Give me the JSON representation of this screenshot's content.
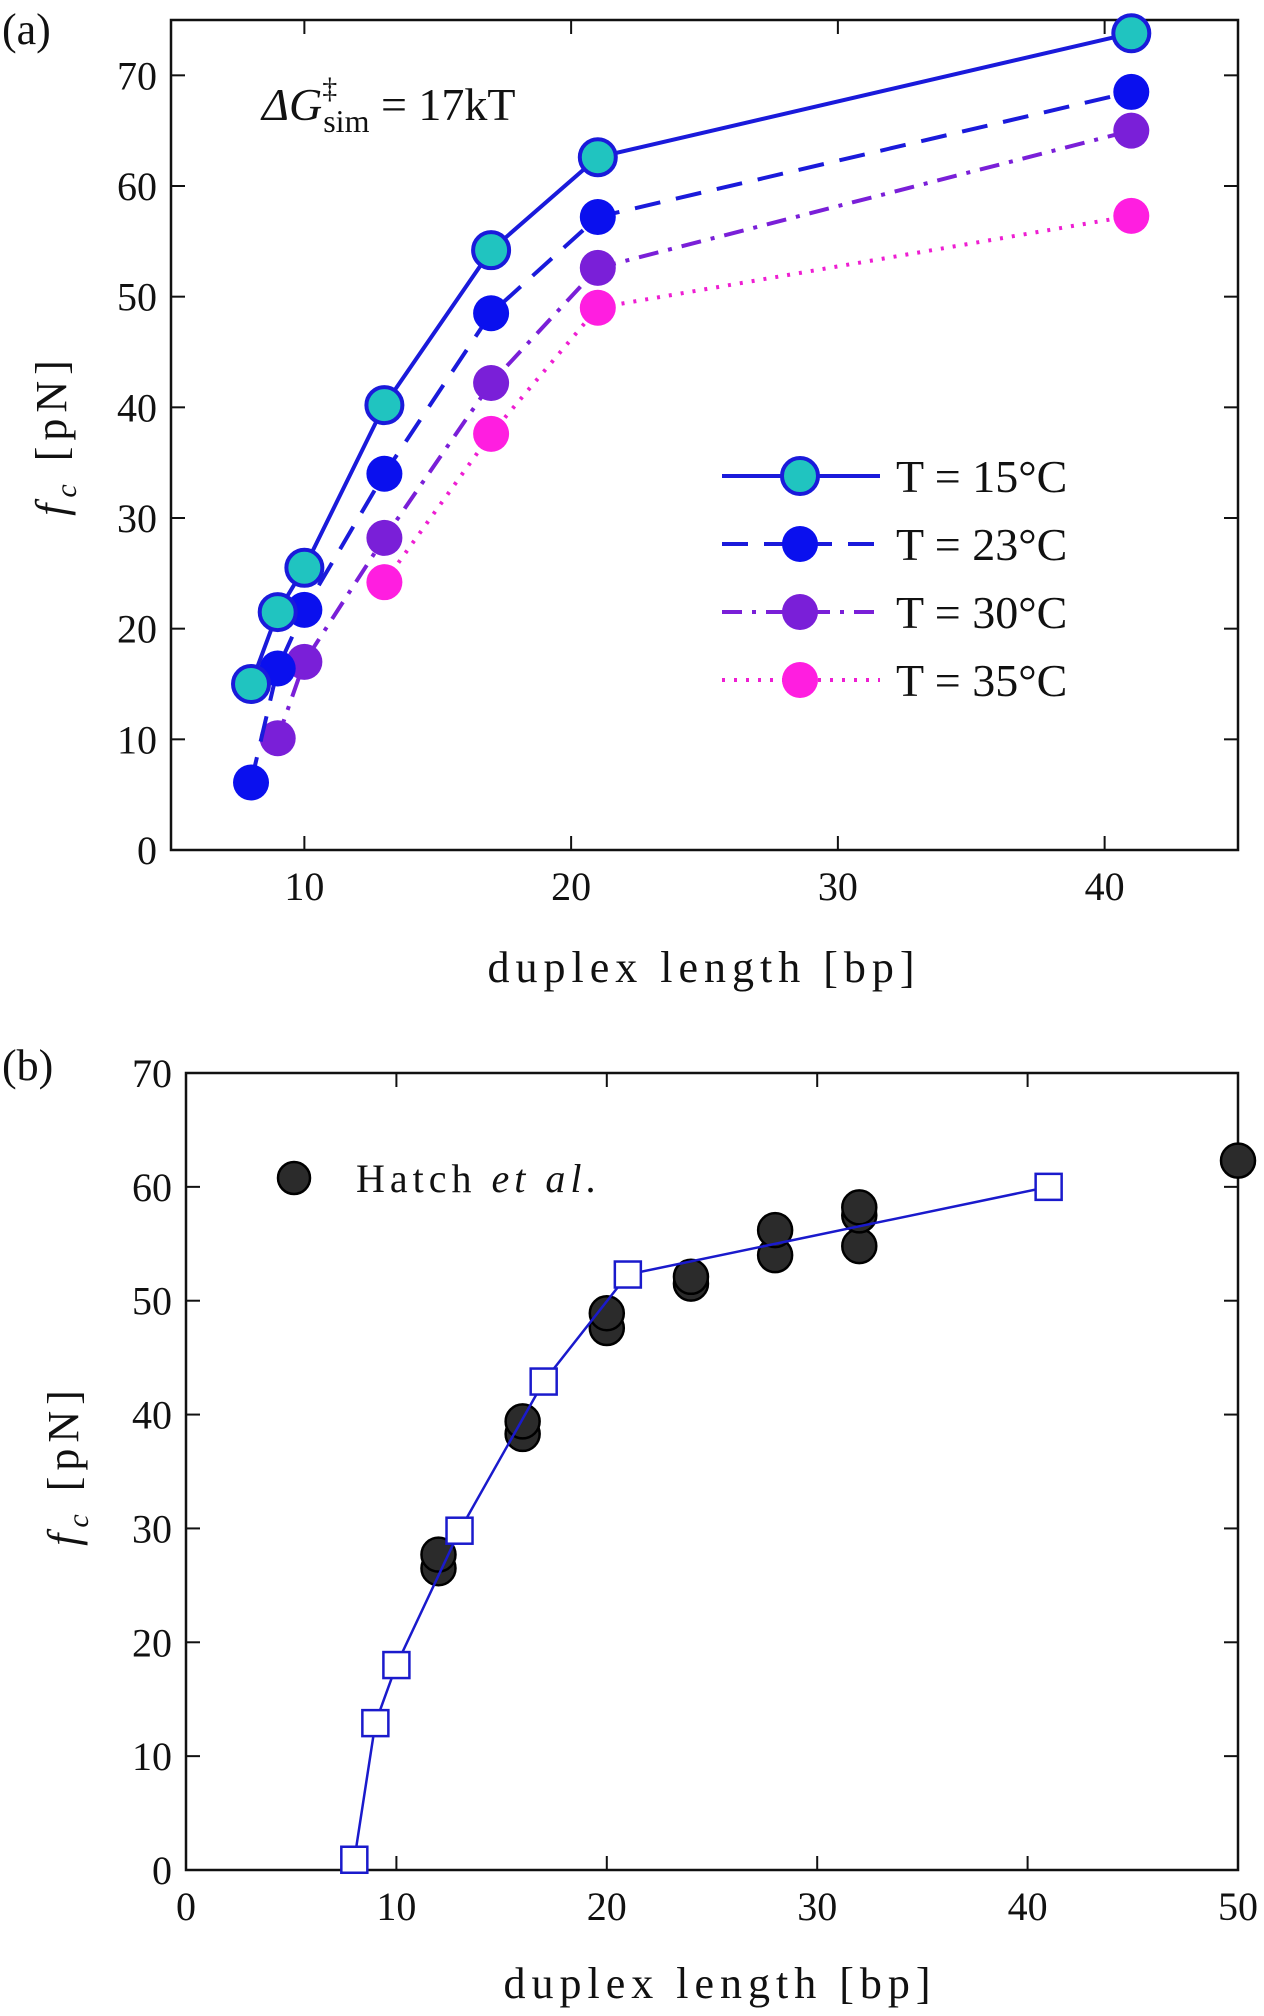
{
  "chart_data": [
    {
      "panel_label": "(a)",
      "type": "line",
      "annotation": "ΔG‡sim = 17kT",
      "annotation_parts": {
        "prefix": "ΔG",
        "sup": "‡",
        "sub": "sim",
        "suffix": " = 17kT"
      },
      "xlabel": "duplex length [bp]",
      "ylabel": "fc [pN]",
      "ylabel_parts": {
        "main": "f",
        "sub": "c",
        "rest": " [pN]"
      },
      "xlim": [
        5,
        45
      ],
      "ylim": [
        0,
        75
      ],
      "xticks": [
        10,
        20,
        30,
        40
      ],
      "yticks": [
        0,
        10,
        20,
        30,
        40,
        50,
        60,
        70
      ],
      "grid": false,
      "legend_position": "center-right",
      "x": [
        8,
        9,
        10,
        13,
        17,
        21,
        41
      ],
      "series": [
        {
          "name": "T = 15°C",
          "line_style": "solid",
          "line_color": "#1a1adb",
          "marker_fill": "#20c4c0",
          "marker_edge": "#1a1adb",
          "values": [
            15.0,
            21.5,
            25.5,
            40.2,
            54.2,
            62.6,
            73.8
          ]
        },
        {
          "name": "T = 23°C",
          "line_style": "dashed",
          "line_color": "#1a1adb",
          "marker_fill": "#0a10ee",
          "marker_edge": "#0a10ee",
          "values": [
            6.1,
            16.4,
            21.7,
            34.0,
            48.5,
            57.2,
            68.5
          ]
        },
        {
          "name": "T = 30°C",
          "line_style": "dashdot",
          "line_color": "#7a1fd8",
          "marker_fill": "#7a1fd8",
          "marker_edge": "#7a1fd8",
          "values": [
            null,
            10.1,
            17.0,
            28.2,
            42.2,
            52.6,
            65.0
          ]
        },
        {
          "name": "T = 35°C",
          "line_style": "dotted",
          "line_color": "#ee1ed2",
          "marker_fill": "#ff1ee0",
          "marker_edge": "#ff1ee0",
          "values": [
            null,
            null,
            null,
            24.2,
            37.6,
            49.0,
            57.3
          ]
        }
      ],
      "legend_labels": [
        "T = 15°C",
        "T = 23°C",
        "T = 30°C",
        "T = 35°C"
      ]
    },
    {
      "panel_label": "(b)",
      "type": "scatter",
      "xlabel": "duplex length [bp]",
      "ylabel": "fc [pN]",
      "ylabel_parts": {
        "main": "f",
        "sub": "c",
        "rest": " [pN]"
      },
      "xlim": [
        0,
        50
      ],
      "ylim": [
        0,
        70
      ],
      "xticks": [
        0,
        10,
        20,
        30,
        40,
        50
      ],
      "yticks": [
        0,
        10,
        20,
        30,
        40,
        50,
        60,
        70
      ],
      "grid": false,
      "legend_position": "top-left",
      "legend_labels": [
        "Hatch et al."
      ],
      "legend_parts": {
        "plain": "Hatch ",
        "italic": "et al."
      },
      "series": [
        {
          "name": "Hatch et al.",
          "kind": "scatter",
          "marker": "circle",
          "marker_fill": "#2b2b2b",
          "x": [
            12,
            12,
            16,
            16,
            20,
            20,
            24,
            24,
            28,
            28,
            32,
            32,
            32,
            50
          ],
          "y": [
            26.5,
            27.7,
            38.3,
            39.4,
            47.6,
            48.9,
            51.5,
            52.1,
            54.0,
            56.2,
            54.8,
            57.5,
            58.2,
            62.3
          ]
        },
        {
          "kind": "line",
          "marker": "square",
          "line_color": "#1a1acc",
          "x": [
            8,
            9,
            10,
            13,
            17,
            21,
            41
          ],
          "y": [
            0.9,
            12.9,
            18.0,
            29.8,
            42.9,
            52.3,
            60.0
          ]
        }
      ]
    }
  ]
}
